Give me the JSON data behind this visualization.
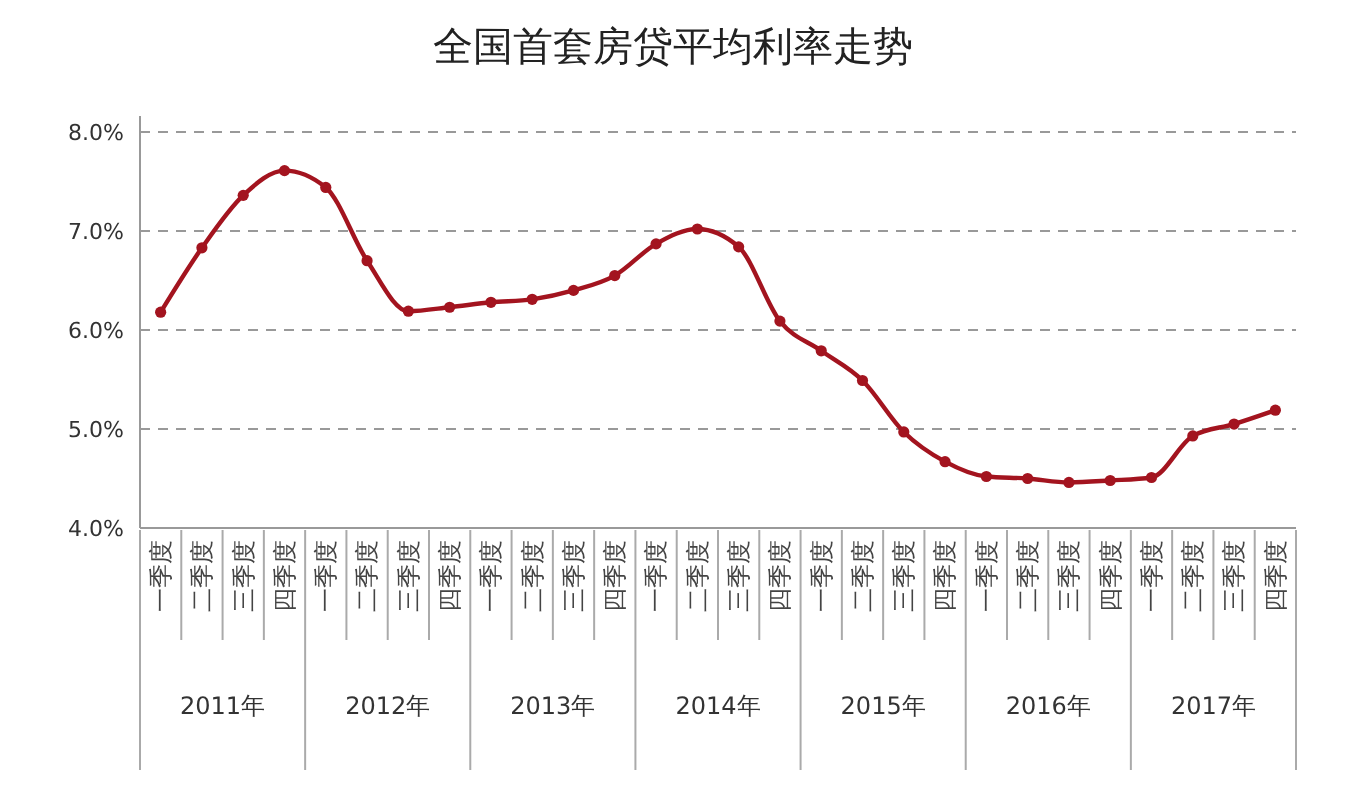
{
  "chart_data": {
    "type": "line",
    "title": "全国首套房贷平均利率走势",
    "categories": [
      "一季度",
      "二季度",
      "三季度",
      "四季度",
      "一季度",
      "二季度",
      "三季度",
      "四季度",
      "一季度",
      "二季度",
      "三季度",
      "四季度",
      "一季度",
      "二季度",
      "三季度",
      "四季度",
      "一季度",
      "二季度",
      "三季度",
      "四季度",
      "一季度",
      "二季度",
      "三季度",
      "四季度",
      "一季度",
      "二季度",
      "三季度",
      "四季度"
    ],
    "series": [
      {
        "color": "#a3141f",
        "values": [
          6.18,
          6.83,
          7.36,
          7.61,
          7.44,
          6.7,
          6.19,
          6.23,
          6.28,
          6.31,
          6.4,
          6.55,
          6.87,
          7.02,
          6.84,
          6.09,
          5.79,
          5.49,
          4.97,
          4.67,
          4.52,
          4.5,
          4.46,
          4.48,
          4.51,
          4.93,
          5.05,
          5.19
        ]
      }
    ],
    "annotations": [
      "2011年",
      "2012年",
      "2013年",
      "2014年",
      "2015年",
      "2016年",
      "2017年"
    ],
    "ylim": [
      4,
      8
    ],
    "yticks": [
      {
        "value": 4,
        "label": "4.0%"
      },
      {
        "value": 5,
        "label": "5.0%"
      },
      {
        "value": 6,
        "label": "6.0%"
      },
      {
        "value": 7,
        "label": "7.0%"
      },
      {
        "value": 8,
        "label": "8.0%"
      }
    ],
    "grid": "y",
    "marker": "circle",
    "line_style": "solid"
  }
}
